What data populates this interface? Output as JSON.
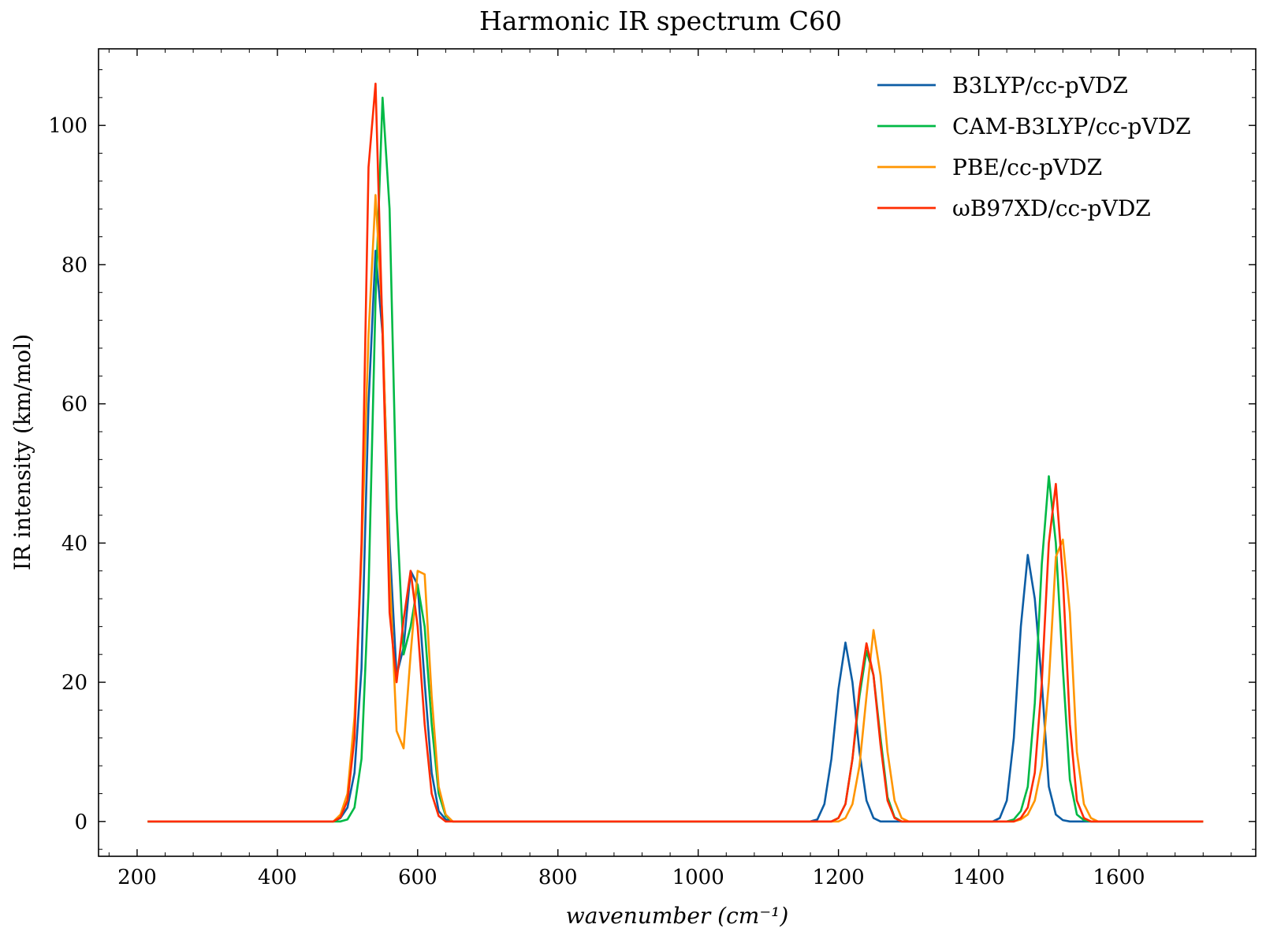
{
  "chart_data": {
    "type": "line",
    "title": "Harmonic IR spectrum C60",
    "xlabel": "wavenumber (cm⁻¹)",
    "ylabel": "IR intensity (km/mol)",
    "xlim": [
      145,
      1795
    ],
    "ylim": [
      -5,
      111
    ],
    "xticks": [
      200,
      400,
      600,
      800,
      1000,
      1200,
      1400,
      1600
    ],
    "yticks": [
      0,
      20,
      40,
      60,
      80,
      100
    ],
    "grid": false,
    "legend_position": "top-right",
    "series": [
      {
        "name": "B3LYP/cc-pVDZ",
        "color": "#0C5DA5",
        "x": [
          215,
          480,
          490,
          500,
          510,
          520,
          530,
          540,
          550,
          560,
          570,
          580,
          590,
          600,
          610,
          620,
          630,
          640,
          650,
          660,
          1160,
          1170,
          1180,
          1190,
          1200,
          1210,
          1220,
          1230,
          1240,
          1250,
          1260,
          1270,
          1280,
          1420,
          1430,
          1440,
          1450,
          1460,
          1470,
          1480,
          1490,
          1500,
          1510,
          1520,
          1530,
          1720
        ],
        "y": [
          0,
          0,
          0.5,
          2,
          7,
          22,
          60,
          82,
          70,
          40,
          21,
          25,
          36,
          34,
          20,
          7,
          1.5,
          0.3,
          0,
          0,
          0,
          0.3,
          2.5,
          9,
          19,
          25.7,
          20,
          10,
          3,
          0.5,
          0,
          0,
          0,
          0,
          0.5,
          3,
          12,
          28,
          38.3,
          32,
          20,
          5,
          1,
          0.2,
          0,
          0
        ]
      },
      {
        "name": "CAM-B3LYP/cc-pVDZ",
        "color": "#00B945",
        "x": [
          215,
          490,
          500,
          510,
          520,
          530,
          540,
          550,
          560,
          570,
          580,
          590,
          600,
          610,
          620,
          630,
          640,
          650,
          1190,
          1200,
          1210,
          1220,
          1230,
          1240,
          1250,
          1260,
          1270,
          1280,
          1290,
          1440,
          1450,
          1460,
          1470,
          1480,
          1490,
          1500,
          1510,
          1520,
          1530,
          1540,
          1550,
          1560,
          1720
        ],
        "y": [
          0,
          0,
          0.3,
          2,
          9,
          33,
          75,
          104,
          88,
          45,
          24,
          28,
          34,
          28,
          14,
          4,
          0.8,
          0,
          0,
          0.5,
          2.5,
          9,
          18,
          24.5,
          21,
          12,
          3.5,
          0.6,
          0,
          0,
          0.3,
          1.5,
          5,
          17,
          37,
          49.6,
          40,
          22,
          6,
          1,
          0.2,
          0,
          0
        ]
      },
      {
        "name": "PBE/cc-pVDZ",
        "color": "#FF9500",
        "x": [
          215,
          480,
          490,
          500,
          510,
          520,
          530,
          540,
          550,
          560,
          570,
          580,
          590,
          600,
          610,
          620,
          630,
          640,
          650,
          1200,
          1210,
          1220,
          1230,
          1240,
          1250,
          1260,
          1270,
          1280,
          1290,
          1300,
          1450,
          1460,
          1470,
          1480,
          1490,
          1500,
          1510,
          1520,
          1530,
          1540,
          1550,
          1560,
          1570,
          1720
        ],
        "y": [
          0,
          0,
          1,
          4,
          15,
          38,
          70,
          90,
          72,
          36,
          13,
          10.5,
          24,
          36,
          35.5,
          18,
          5,
          1,
          0,
          0,
          0.5,
          2.5,
          8,
          18,
          27.5,
          21,
          10,
          3,
          0.5,
          0,
          0,
          0.3,
          1,
          3,
          8,
          20,
          38,
          40.5,
          30,
          10,
          2.5,
          0.5,
          0,
          0
        ]
      },
      {
        "name": "ωB97XD/cc-pVDZ",
        "color": "#FF2C00",
        "x": [
          215,
          480,
          490,
          500,
          510,
          520,
          530,
          540,
          550,
          560,
          570,
          580,
          590,
          600,
          610,
          620,
          630,
          640,
          650,
          1190,
          1200,
          1210,
          1220,
          1230,
          1240,
          1250,
          1260,
          1270,
          1280,
          1290,
          1450,
          1460,
          1470,
          1480,
          1490,
          1500,
          1510,
          1520,
          1530,
          1540,
          1550,
          1560,
          1720
        ],
        "y": [
          0,
          0,
          0.6,
          3,
          12,
          40,
          94,
          106,
          70,
          30,
          20,
          29,
          36,
          28,
          14,
          4,
          0.8,
          0,
          0,
          0,
          0.5,
          2.5,
          9,
          19,
          25.6,
          21,
          11,
          3,
          0.5,
          0,
          0,
          0.5,
          2,
          7,
          20,
          40,
          48.5,
          35,
          14,
          3,
          0.5,
          0,
          0
        ]
      }
    ]
  }
}
